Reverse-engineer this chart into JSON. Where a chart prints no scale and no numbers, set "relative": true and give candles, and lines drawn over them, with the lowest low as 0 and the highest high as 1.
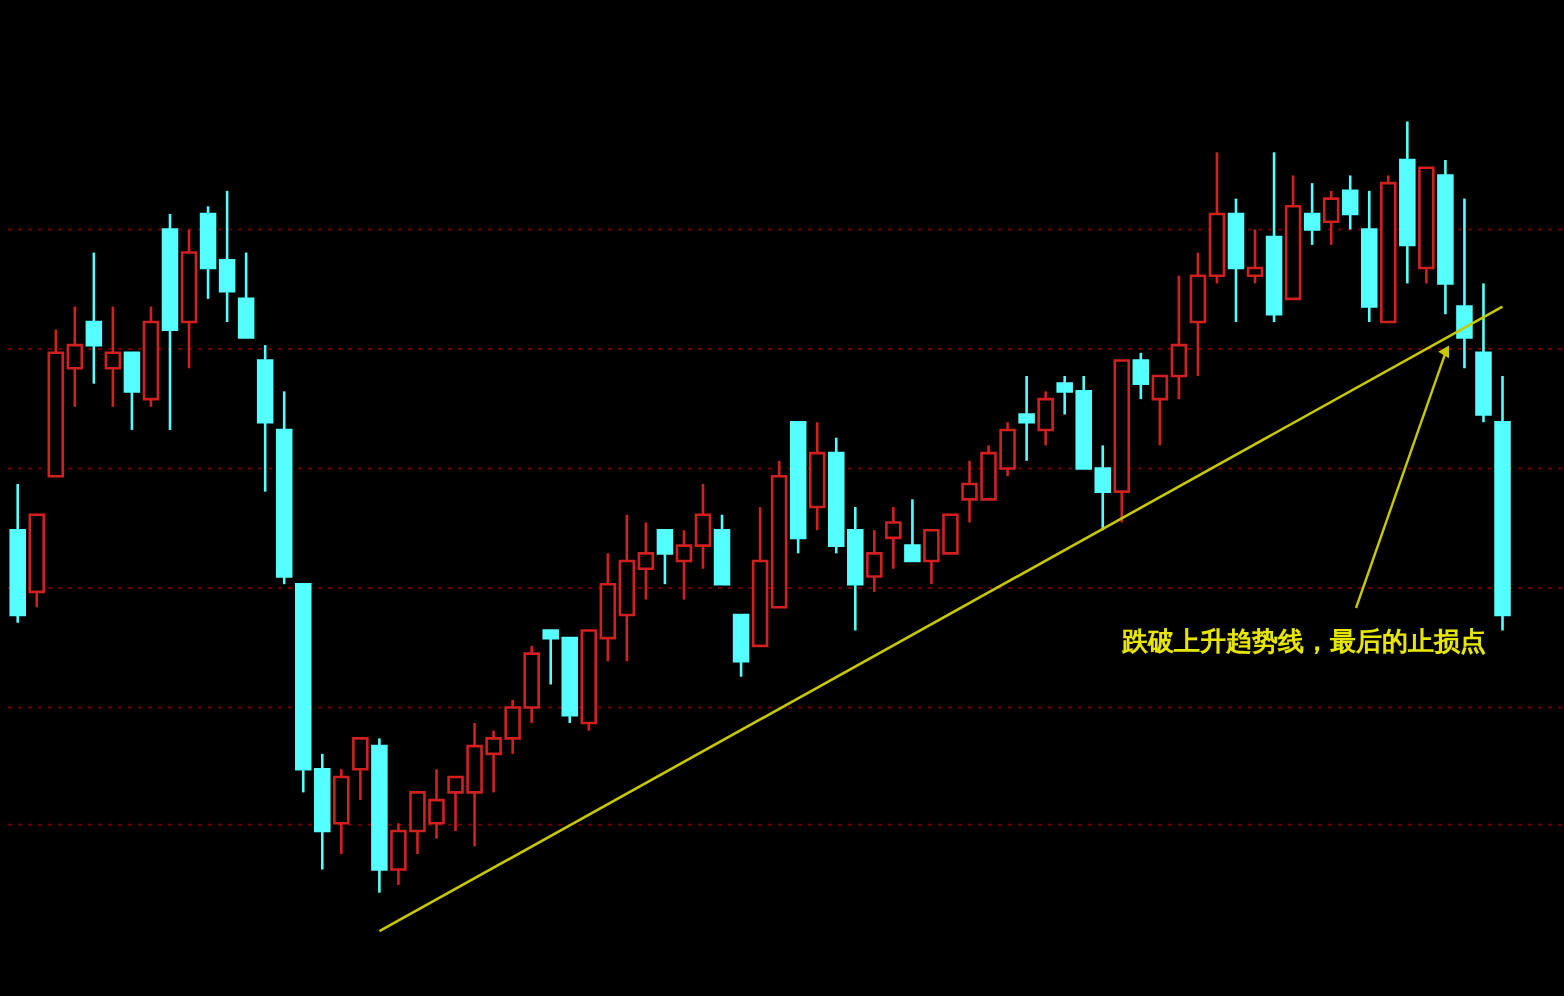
{
  "chart_data": {
    "type": "candlestick",
    "relative": true,
    "ref_lines": [
      {
        "axis": "y",
        "value": 0.86,
        "color": "#6a0000",
        "line_style": "dotted"
      },
      {
        "axis": "y",
        "value": 0.705,
        "color": "#6a0000",
        "line_style": "dotted"
      },
      {
        "axis": "y",
        "value": 0.55,
        "color": "#6a0000",
        "line_style": "dotted"
      },
      {
        "axis": "y",
        "value": 0.395,
        "color": "#6a0000",
        "line_style": "dotted"
      },
      {
        "axis": "y",
        "value": 0.24,
        "color": "#6a0000",
        "line_style": "dotted"
      },
      {
        "axis": "y",
        "value": 0.088,
        "color": "#6a0000",
        "line_style": "dotted"
      }
    ],
    "categories": [
      null,
      null,
      null,
      null,
      null,
      null,
      null,
      null,
      null,
      null,
      null,
      null,
      null,
      null,
      null,
      null,
      null,
      null,
      null,
      null,
      null,
      null,
      null,
      null,
      null,
      null,
      null,
      null,
      null,
      null,
      null,
      null,
      null,
      null,
      null,
      null,
      null,
      null,
      null,
      null,
      null,
      null,
      null,
      null,
      null,
      null,
      null,
      null,
      null,
      null,
      null,
      null,
      null,
      null,
      null,
      null,
      null,
      null,
      null,
      null,
      null,
      null,
      null,
      null,
      null,
      null,
      null,
      null,
      null,
      null,
      null,
      null,
      null,
      null,
      null,
      null,
      null,
      null,
      null
    ],
    "colors": [
      "#55ffff",
      "#d02020",
      "#d02020",
      "#d02020",
      "#55ffff",
      "#d02020",
      "#55ffff",
      "#d02020",
      "#55ffff",
      "#d02020",
      "#55ffff",
      "#55ffff",
      "#55ffff",
      "#55ffff",
      "#55ffff",
      "#55ffff",
      "#55ffff",
      "#d02020",
      "#d02020",
      "#55ffff",
      "#d02020",
      "#d02020",
      "#d02020",
      "#d02020",
      "#d02020",
      "#d02020",
      "#d02020",
      "#d02020",
      "#55ffff",
      "#55ffff",
      "#d02020",
      "#d02020",
      "#d02020",
      "#d02020",
      "#55ffff",
      "#d02020",
      "#d02020",
      "#55ffff",
      "#55ffff",
      "#d02020",
      "#d02020",
      "#55ffff",
      "#d02020",
      "#55ffff",
      "#55ffff",
      "#d02020",
      "#d02020",
      "#55ffff",
      "#d02020",
      "#d02020",
      "#d02020",
      "#d02020",
      "#d02020",
      "#55ffff",
      "#d02020",
      "#55ffff",
      "#55ffff",
      "#55ffff",
      "#d02020",
      "#55ffff",
      "#d02020",
      "#d02020",
      "#d02020",
      "#d02020",
      "#55ffff",
      "#d02020",
      "#55ffff",
      "#d02020",
      "#55ffff",
      "#d02020",
      "#55ffff",
      "#55ffff",
      "#d02020",
      "#55ffff",
      "#d02020",
      "#55ffff",
      "#55ffff",
      "#55ffff",
      "#55ffff"
    ],
    "ohlc": [
      [
        0.47,
        0.53,
        0.35,
        0.36
      ],
      [
        0.39,
        0.49,
        0.37,
        0.49
      ],
      [
        0.54,
        0.73,
        0.54,
        0.7
      ],
      [
        0.68,
        0.76,
        0.63,
        0.71
      ],
      [
        0.74,
        0.83,
        0.66,
        0.71
      ],
      [
        0.68,
        0.76,
        0.63,
        0.7
      ],
      [
        0.7,
        0.7,
        0.6,
        0.65
      ],
      [
        0.64,
        0.76,
        0.63,
        0.74
      ],
      [
        0.86,
        0.88,
        0.6,
        0.73
      ],
      [
        0.74,
        0.86,
        0.68,
        0.83
      ],
      [
        0.88,
        0.89,
        0.77,
        0.81
      ],
      [
        0.82,
        0.91,
        0.74,
        0.78
      ],
      [
        0.77,
        0.83,
        0.72,
        0.72
      ],
      [
        0.69,
        0.71,
        0.52,
        0.61
      ],
      [
        0.6,
        0.65,
        0.4,
        0.41
      ],
      [
        0.4,
        0.4,
        0.13,
        0.16
      ],
      [
        0.16,
        0.18,
        0.03,
        0.08
      ],
      [
        0.09,
        0.16,
        0.05,
        0.15
      ],
      [
        0.16,
        0.2,
        0.12,
        0.2
      ],
      [
        0.19,
        0.2,
        0,
        0.03
      ],
      [
        0.03,
        0.09,
        0.01,
        0.08
      ],
      [
        0.08,
        0.13,
        0.05,
        0.13
      ],
      [
        0.09,
        0.16,
        0.07,
        0.12
      ],
      [
        0.13,
        0.15,
        0.08,
        0.15
      ],
      [
        0.13,
        0.22,
        0.06,
        0.19
      ],
      [
        0.18,
        0.21,
        0.13,
        0.2
      ],
      [
        0.2,
        0.25,
        0.18,
        0.24
      ],
      [
        0.24,
        0.32,
        0.22,
        0.31
      ],
      [
        0.34,
        0.34,
        0.27,
        0.33
      ],
      [
        0.33,
        0.33,
        0.22,
        0.23
      ],
      [
        0.22,
        0.34,
        0.21,
        0.34
      ],
      [
        0.33,
        0.44,
        0.3,
        0.4
      ],
      [
        0.36,
        0.49,
        0.3,
        0.43
      ],
      [
        0.42,
        0.48,
        0.38,
        0.44
      ],
      [
        0.47,
        0.47,
        0.4,
        0.44
      ],
      [
        0.43,
        0.47,
        0.38,
        0.45
      ],
      [
        0.45,
        0.53,
        0.42,
        0.49
      ],
      [
        0.47,
        0.49,
        0.4,
        0.4
      ],
      [
        0.36,
        0.36,
        0.28,
        0.3
      ],
      [
        0.32,
        0.5,
        0.32,
        0.43
      ],
      [
        0.37,
        0.56,
        0.37,
        0.54
      ],
      [
        0.61,
        0.61,
        0.44,
        0.46
      ],
      [
        0.5,
        0.61,
        0.47,
        0.57
      ],
      [
        0.57,
        0.59,
        0.44,
        0.45
      ],
      [
        0.47,
        0.5,
        0.34,
        0.4
      ],
      [
        0.41,
        0.47,
        0.39,
        0.44
      ],
      [
        0.46,
        0.5,
        0.42,
        0.48
      ],
      [
        0.45,
        0.51,
        0.43,
        0.43
      ],
      [
        0.43,
        0.47,
        0.4,
        0.47
      ],
      [
        0.44,
        0.49,
        0.44,
        0.49
      ],
      [
        0.51,
        0.56,
        0.48,
        0.53
      ],
      [
        0.51,
        0.58,
        0.51,
        0.57
      ],
      [
        0.55,
        0.61,
        0.54,
        0.6
      ],
      [
        0.62,
        0.67,
        0.56,
        0.61
      ],
      [
        0.6,
        0.65,
        0.58,
        0.64
      ],
      [
        0.66,
        0.67,
        0.62,
        0.65
      ],
      [
        0.65,
        0.67,
        0.55,
        0.55
      ],
      [
        0.55,
        0.58,
        0.47,
        0.52
      ],
      [
        0.52,
        0.69,
        0.48,
        0.69
      ],
      [
        0.69,
        0.7,
        0.64,
        0.66
      ],
      [
        0.64,
        0.67,
        0.58,
        0.67
      ],
      [
        0.67,
        0.8,
        0.64,
        0.71
      ],
      [
        0.74,
        0.83,
        0.67,
        0.8
      ],
      [
        0.8,
        0.96,
        0.79,
        0.88
      ],
      [
        0.88,
        0.9,
        0.74,
        0.81
      ],
      [
        0.8,
        0.86,
        0.79,
        0.81
      ],
      [
        0.85,
        0.96,
        0.74,
        0.75
      ],
      [
        0.77,
        0.93,
        0.77,
        0.89
      ],
      [
        0.88,
        0.92,
        0.84,
        0.86
      ],
      [
        0.87,
        0.91,
        0.84,
        0.9
      ],
      [
        0.91,
        0.93,
        0.86,
        0.88
      ],
      [
        0.86,
        0.91,
        0.74,
        0.76
      ],
      [
        0.74,
        0.93,
        0.74,
        0.92
      ],
      [
        0.95,
        1,
        0.79,
        0.84
      ],
      [
        0.81,
        0.94,
        0.79,
        0.94
      ],
      [
        0.93,
        0.95,
        0.75,
        0.79
      ],
      [
        0.76,
        0.9,
        0.68,
        0.72
      ],
      [
        0.7,
        0.79,
        0.61,
        0.62
      ],
      [
        0.61,
        0.67,
        0.34,
        0.36
      ]
    ],
    "series": [
      {
        "type": "line",
        "color": "#c8c800",
        "values": [
          null,
          null,
          null,
          null,
          null,
          null,
          null,
          null,
          null,
          null,
          null,
          null,
          null,
          null,
          null,
          null,
          null,
          null,
          null,
          -0.05,
          null,
          null,
          null,
          null,
          null,
          null,
          null,
          null,
          null,
          null,
          null,
          null,
          null,
          null,
          null,
          null,
          null,
          null,
          null,
          null,
          null,
          null,
          null,
          null,
          null,
          null,
          null,
          null,
          null,
          null,
          null,
          null,
          null,
          null,
          null,
          null,
          null,
          null,
          null,
          null,
          null,
          null,
          null,
          null,
          null,
          null,
          null,
          null,
          null,
          null,
          null,
          null,
          null,
          null,
          null,
          null,
          null,
          null,
          0.76
        ]
      }
    ],
    "annotations": [
      "跌破上升趋势线，最后的止损点"
    ]
  }
}
